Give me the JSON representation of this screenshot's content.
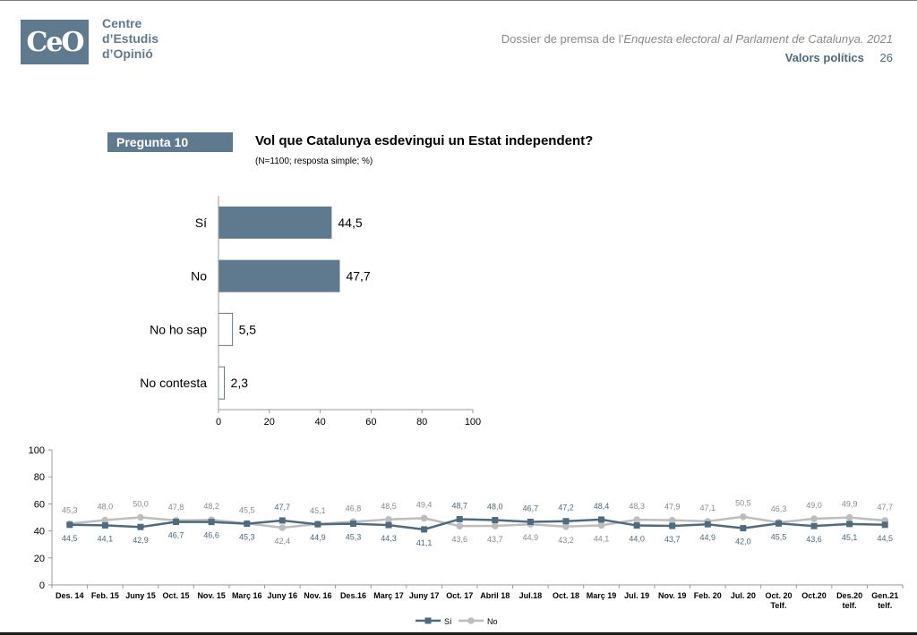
{
  "header": {
    "logo_mark": "CeO",
    "org_lines": [
      "Centre",
      "d’Estudis",
      "d’Opinió"
    ],
    "dossier_prefix": "Dossier de premsa de l’",
    "dossier_title": "Enquesta electoral al Parlament de Catalunya. 2021",
    "section": "Valors polítics",
    "page_number": "26"
  },
  "question": {
    "badge": "Pregunta 10",
    "text": "Vol que Catalunya esdevingui un Estat independent?",
    "subtitle": "(N=1100; resposta simple; %)"
  },
  "colors": {
    "accent": "#5f7a8e",
    "si_line": "#4f6b7f",
    "no_line": "#bdbdbd",
    "no_label": "#8a8a8a",
    "si_label": "#4a6a80"
  },
  "chart_data": [
    {
      "type": "bar",
      "orientation": "horizontal",
      "categories": [
        "Sí",
        "No",
        "No ho sap",
        "No contesta"
      ],
      "values": [
        44.5,
        47.7,
        5.5,
        2.3
      ],
      "value_labels": [
        "44,5",
        "47,7",
        "5,5",
        "2,3"
      ],
      "bar_styles": [
        "filled",
        "filled",
        "outline",
        "outline"
      ],
      "xlim": [
        0,
        100
      ],
      "xticks": [
        "0",
        "20",
        "40",
        "60",
        "80",
        "100"
      ]
    },
    {
      "type": "line",
      "categories": [
        [
          "Des. 14"
        ],
        [
          "Feb. 15"
        ],
        [
          "Juny 15"
        ],
        [
          "Oct. 15"
        ],
        [
          "Nov. 15"
        ],
        [
          "Març 16"
        ],
        [
          "Juny 16"
        ],
        [
          "Nov. 16"
        ],
        [
          "Des.16"
        ],
        [
          "Març 17"
        ],
        [
          "Juny 17"
        ],
        [
          "Oct. 17"
        ],
        [
          "Abril 18"
        ],
        [
          "Jul.18"
        ],
        [
          "Oct. 18"
        ],
        [
          "Març 19"
        ],
        [
          "Jul. 19"
        ],
        [
          "Nov. 19"
        ],
        [
          "Feb. 20"
        ],
        [
          "Jul. 20"
        ],
        [
          "Oct. 20",
          "Telf."
        ],
        [
          "Oct.20"
        ],
        [
          "Des.20",
          "telf."
        ],
        [
          "Gen.21",
          "telf."
        ]
      ],
      "series": [
        {
          "name": "Sí",
          "values": [
            44.5,
            44.1,
            42.9,
            46.7,
            46.6,
            45.3,
            47.7,
            44.9,
            45.3,
            44.3,
            41.1,
            48.7,
            48.0,
            46.7,
            47.2,
            48.4,
            44.0,
            43.7,
            44.9,
            42.0,
            45.5,
            43.6,
            45.1,
            44.5
          ],
          "labels": [
            "44,5",
            "44,1",
            "42,9",
            "46,7",
            "46,6",
            "45,3",
            "47,7",
            "44,9",
            "45,3",
            "44,3",
            "41,1",
            "48,7",
            "48,0",
            "46,7",
            "47,2",
            "48,4",
            "44,0",
            "43,7",
            "44,9",
            "42,0",
            "45,5",
            "43,6",
            "45,1",
            "44,5"
          ],
          "label_pos": [
            "below",
            "below",
            "below",
            "below",
            "below",
            "below",
            "above",
            "below",
            "below",
            "below",
            "below",
            "above",
            "above",
            "above",
            "above",
            "above",
            "below",
            "below",
            "below",
            "below",
            "below",
            "below",
            "below",
            "below"
          ]
        },
        {
          "name": "No",
          "values": [
            45.3,
            48.0,
            50.0,
            47.8,
            48.2,
            45.5,
            42.4,
            45.1,
            46.8,
            48.5,
            49.4,
            43.6,
            43.7,
            44.9,
            43.2,
            44.1,
            48.3,
            47.9,
            47.1,
            50.5,
            46.3,
            49.0,
            49.9,
            47.7
          ],
          "labels": [
            "45,3",
            "48,0",
            "50,0",
            "47,8",
            "48,2",
            "45,5",
            "42,4",
            "45,1",
            "46,8",
            "48,5",
            "49,4",
            "43,6",
            "43,7",
            "44,9",
            "43,2",
            "44,1",
            "48,3",
            "47,9",
            "47,1",
            "50,5",
            "46,3",
            "49,0",
            "49,9",
            "47,7"
          ],
          "label_pos": [
            "above",
            "above",
            "above",
            "above",
            "above",
            "above",
            "below",
            "above",
            "above",
            "above",
            "above",
            "below",
            "below",
            "below",
            "below",
            "below",
            "above",
            "above",
            "above",
            "above",
            "above",
            "above",
            "above",
            "above"
          ]
        }
      ],
      "ylim": [
        0,
        100
      ],
      "yticks": [
        "0",
        "20",
        "40",
        "60",
        "80",
        "100"
      ],
      "legend_position": "bottom-center"
    }
  ]
}
